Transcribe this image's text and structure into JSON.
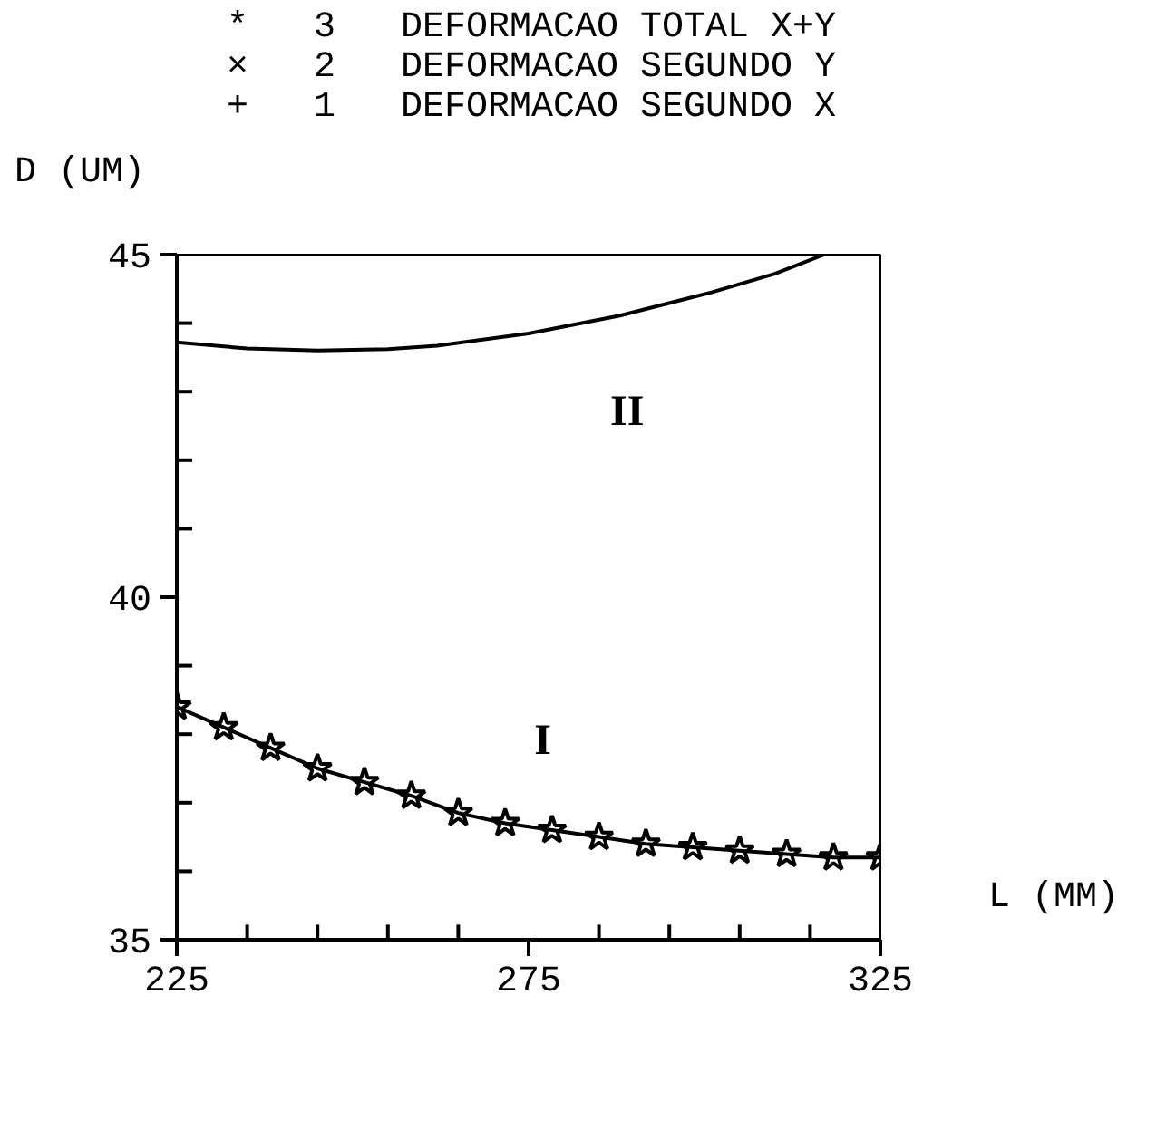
{
  "chart_data": {
    "type": "line",
    "xlabel": "L (MM)",
    "ylabel": "D (UM)",
    "xlim": [
      225,
      325
    ],
    "ylim": [
      35,
      45
    ],
    "xticks": [
      225,
      {
        "value": 235,
        "label": null
      },
      {
        "value": 245,
        "label": null
      },
      {
        "value": 255,
        "label": null
      },
      {
        "value": 265,
        "label": null
      },
      275,
      {
        "value": 285,
        "label": null
      },
      {
        "value": 295,
        "label": null
      },
      {
        "value": 305,
        "label": null
      },
      {
        "value": 315,
        "label": null
      },
      325
    ],
    "yticks": [
      35,
      {
        "value": 36,
        "label": null
      },
      {
        "value": 37,
        "label": null
      },
      {
        "value": 38,
        "label": null
      },
      {
        "value": 39,
        "label": null
      },
      40,
      {
        "value": 41,
        "label": null
      },
      {
        "value": 42,
        "label": null
      },
      {
        "value": 43,
        "label": null
      },
      {
        "value": 44,
        "label": null
      },
      45
    ],
    "grid": false,
    "series": [
      {
        "color": "#000000",
        "marker": "star",
        "x": [
          225,
          231.67,
          238.33,
          245,
          251.67,
          258.33,
          265,
          271.67,
          278.33,
          285,
          291.67,
          298.33,
          305,
          311.67,
          318.33,
          325
        ],
        "values": [
          38.4,
          38.1,
          37.8,
          37.5,
          37.3,
          37.1,
          36.85,
          36.7,
          36.6,
          36.5,
          36.4,
          36.35,
          36.3,
          36.25,
          36.2,
          36.2
        ]
      },
      {
        "color": "#000000",
        "marker": "none",
        "x": [
          225,
          235,
          245,
          255,
          262,
          275,
          288,
          301,
          310,
          317
        ],
        "values": [
          43.72,
          43.63,
          43.6,
          43.62,
          43.67,
          43.85,
          44.11,
          44.45,
          44.72,
          45.0
        ]
      }
    ],
    "annotations": [
      "*   3   DEFORMACAO TOTAL X+Y",
      "×   2   DEFORMACAO SEGUNDO Y",
      "+   1   DEFORMACAO SEGUNDO X",
      "I",
      "II"
    ]
  }
}
